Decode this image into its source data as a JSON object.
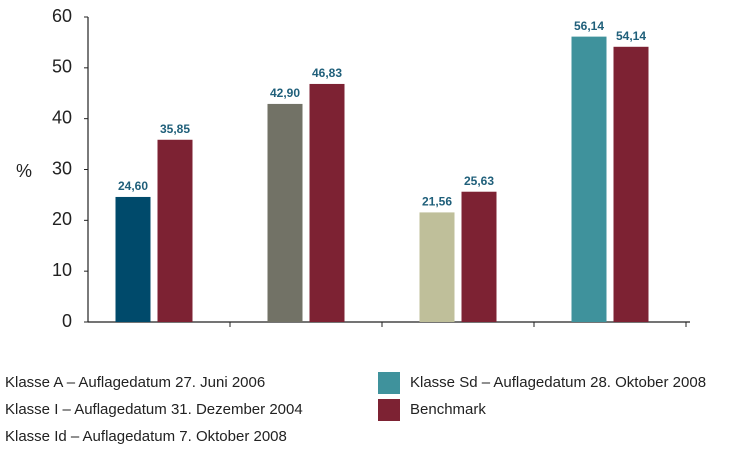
{
  "chart_data": {
    "type": "bar",
    "y_label": "%",
    "ylim": [
      0,
      60
    ],
    "yticks": [
      0,
      10,
      20,
      30,
      40,
      50,
      60
    ],
    "series": [
      {
        "name": "Klasse A – Auflagedatum 27. Juni 2006",
        "color": "#004a6b",
        "values": [
          24.6,
          null,
          null,
          null
        ],
        "value_labels": [
          "24,60",
          null,
          null,
          null
        ]
      },
      {
        "name": "Klasse I – Auflagedatum 31. Dezember 2004",
        "color": "#727266",
        "values": [
          null,
          42.9,
          null,
          null
        ],
        "value_labels": [
          null,
          "42,90",
          null,
          null
        ]
      },
      {
        "name": "Klasse Id – Auflagedatum 7. Oktober 2008",
        "color": "#bfbf9a",
        "values": [
          null,
          null,
          21.56,
          null
        ],
        "value_labels": [
          null,
          null,
          "21,56",
          null
        ]
      },
      {
        "name": "Klasse Sd – Auflagedatum 28. Oktober 2008",
        "color": "#3f929c",
        "values": [
          null,
          null,
          null,
          56.14
        ],
        "value_labels": [
          null,
          null,
          null,
          "56,14"
        ]
      },
      {
        "name": "Benchmark",
        "color": "#7d2233",
        "values": [
          35.85,
          46.83,
          25.63,
          54.14
        ],
        "value_labels": [
          "35,85",
          "46,83",
          "25,63",
          "54,14"
        ]
      }
    ]
  }
}
